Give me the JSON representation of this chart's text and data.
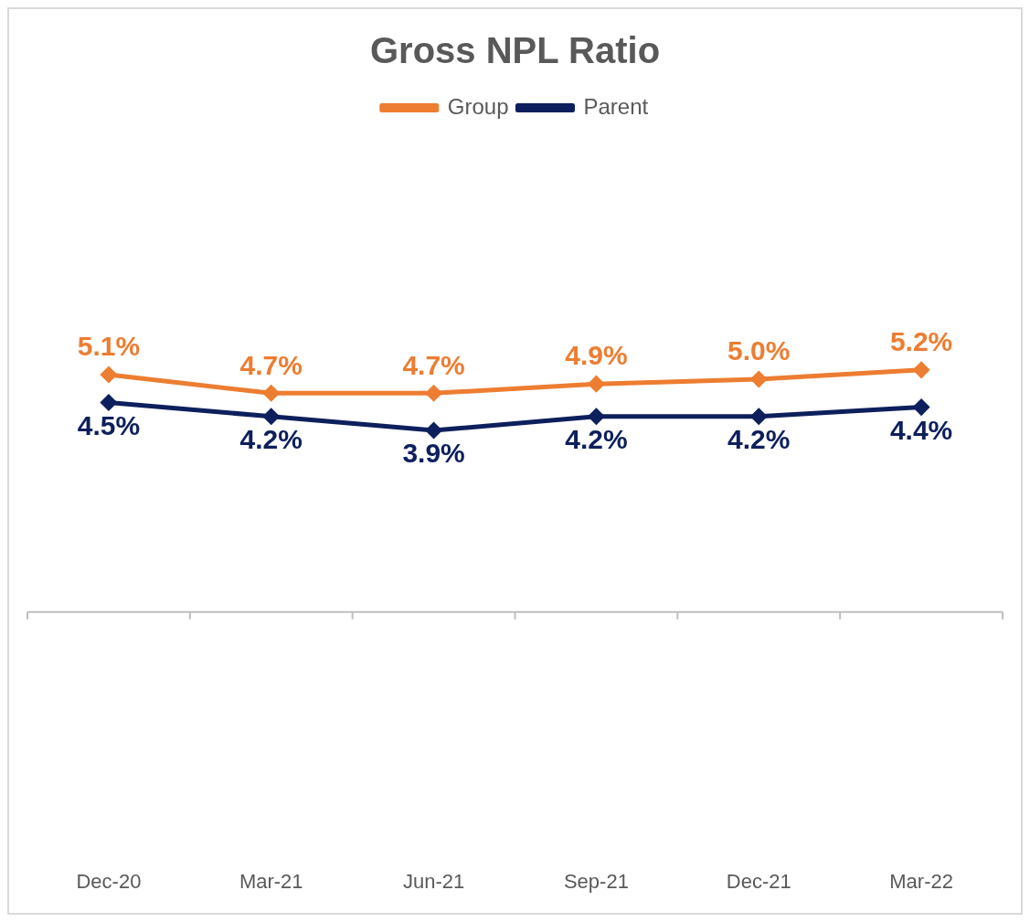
{
  "chart_data": {
    "type": "line",
    "title": "Gross NPL Ratio",
    "categories": [
      "Dec-20",
      "Mar-21",
      "Jun-21",
      "Sep-21",
      "Dec-21",
      "Mar-22"
    ],
    "series": [
      {
        "name": "Group",
        "color": "#ed7d31",
        "values": [
          5.1,
          4.7,
          4.7,
          4.9,
          5.0,
          5.2
        ],
        "value_labels": [
          "5.1%",
          "4.7%",
          "4.7%",
          "4.9%",
          "5.0%",
          "5.2%"
        ]
      },
      {
        "name": "Parent",
        "color": "#0d1f5c",
        "values": [
          4.5,
          4.2,
          3.9,
          4.2,
          4.2,
          4.4
        ],
        "value_labels": [
          "4.5%",
          "4.2%",
          "3.9%",
          "4.2%",
          "4.2%",
          "4.4%"
        ]
      }
    ],
    "grid": false,
    "legend": "top",
    "marker": "diamond",
    "line_style": "solid"
  }
}
